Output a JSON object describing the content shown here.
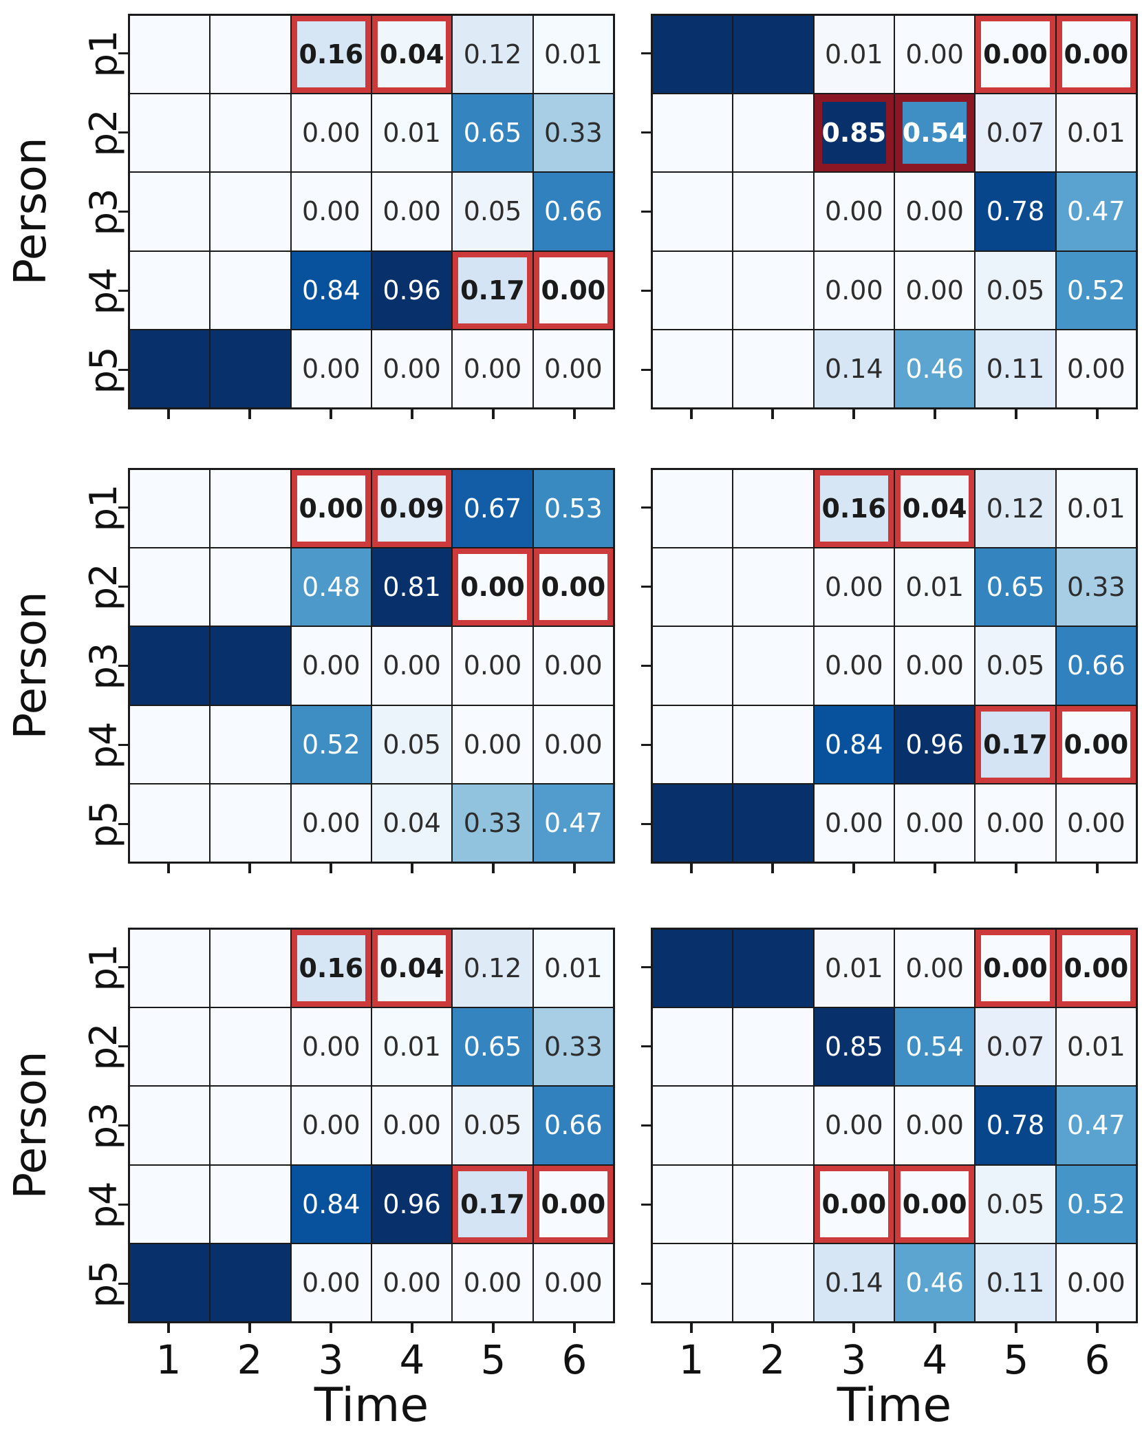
{
  "figure": {
    "ylabel": "Person",
    "xlabel": "Time",
    "x_ticklabels": [
      "1",
      "2",
      "3",
      "4",
      "5",
      "6"
    ],
    "y_ticklabels": [
      "p1",
      "p2",
      "p3",
      "p4",
      "p5"
    ]
  },
  "chart_data": {
    "type": "heatmap",
    "layout": "3 rows x 2 columns of subplots",
    "colormap": "Blues",
    "colormap_stops": [
      [
        0.0,
        "#f7fbff"
      ],
      [
        0.125,
        "#deebf7"
      ],
      [
        0.25,
        "#c6dbef"
      ],
      [
        0.375,
        "#9ecae1"
      ],
      [
        0.5,
        "#6baed6"
      ],
      [
        0.625,
        "#4292c6"
      ],
      [
        0.75,
        "#2171b5"
      ],
      [
        0.875,
        "#08519c"
      ],
      [
        1.0,
        "#08306b"
      ]
    ],
    "normalization": "per_subplot_vmax",
    "value_format": "2dp",
    "highlight_colors": {
      "red": "#cd3a3c",
      "darkred": "#8b1724"
    },
    "grid_line_color": "#1a1a1a",
    "xlabel": "Time",
    "ylabel": "Person",
    "x": [
      "1",
      "2",
      "3",
      "4",
      "5",
      "6"
    ],
    "y": [
      "p1",
      "p2",
      "p3",
      "p4",
      "p5"
    ],
    "cell_legend": "null = empty min-color cell (no text); \"max\" = solid darkest-blue cell (no text); number = annotated value; object {v, hl} = annotated value with red/darkred highlight box and bold text",
    "subplots": [
      {
        "position": "top-left",
        "vmax": 0.96,
        "show_yticklabels": true,
        "show_xticklabels": false,
        "show_xlabel": false,
        "cells": [
          [
            null,
            null,
            {
              "v": 0.16,
              "hl": "red"
            },
            {
              "v": 0.04,
              "hl": "red"
            },
            0.12,
            0.01
          ],
          [
            null,
            null,
            0.0,
            0.01,
            0.65,
            0.33
          ],
          [
            null,
            null,
            0.0,
            0.0,
            0.05,
            0.66
          ],
          [
            null,
            null,
            0.84,
            0.96,
            {
              "v": 0.17,
              "hl": "red"
            },
            {
              "v": 0.0,
              "hl": "red"
            }
          ],
          [
            "max",
            "max",
            0.0,
            0.0,
            0.0,
            0.0
          ]
        ]
      },
      {
        "position": "top-right",
        "vmax": 0.85,
        "show_yticklabels": false,
        "show_xticklabels": false,
        "show_xlabel": false,
        "cells": [
          [
            "max",
            "max",
            0.01,
            0.0,
            {
              "v": 0.0,
              "hl": "red"
            },
            {
              "v": 0.0,
              "hl": "red"
            }
          ],
          [
            null,
            null,
            {
              "v": 0.85,
              "hl": "darkred"
            },
            {
              "v": 0.54,
              "hl": "darkred"
            },
            0.07,
            0.01
          ],
          [
            null,
            null,
            0.0,
            0.0,
            0.78,
            0.47
          ],
          [
            null,
            null,
            0.0,
            0.0,
            0.05,
            0.52
          ],
          [
            null,
            null,
            0.14,
            0.46,
            0.11,
            0.0
          ]
        ]
      },
      {
        "position": "middle-left",
        "vmax": 0.81,
        "show_yticklabels": true,
        "show_xticklabels": false,
        "show_xlabel": false,
        "cells": [
          [
            null,
            null,
            {
              "v": 0.0,
              "hl": "red"
            },
            {
              "v": 0.09,
              "hl": "red"
            },
            0.67,
            0.53
          ],
          [
            null,
            null,
            0.48,
            0.81,
            {
              "v": 0.0,
              "hl": "red"
            },
            {
              "v": 0.0,
              "hl": "red"
            }
          ],
          [
            "max",
            "max",
            0.0,
            0.0,
            0.0,
            0.0
          ],
          [
            null,
            null,
            0.52,
            0.05,
            0.0,
            0.0
          ],
          [
            null,
            null,
            0.0,
            0.04,
            0.33,
            0.47
          ]
        ]
      },
      {
        "position": "middle-right",
        "vmax": 0.96,
        "show_yticklabels": false,
        "show_xticklabels": false,
        "show_xlabel": false,
        "cells": [
          [
            null,
            null,
            {
              "v": 0.16,
              "hl": "red"
            },
            {
              "v": 0.04,
              "hl": "red"
            },
            0.12,
            0.01
          ],
          [
            null,
            null,
            0.0,
            0.01,
            0.65,
            0.33
          ],
          [
            null,
            null,
            0.0,
            0.0,
            0.05,
            0.66
          ],
          [
            null,
            null,
            0.84,
            0.96,
            {
              "v": 0.17,
              "hl": "red"
            },
            {
              "v": 0.0,
              "hl": "red"
            }
          ],
          [
            "max",
            "max",
            0.0,
            0.0,
            0.0,
            0.0
          ]
        ]
      },
      {
        "position": "bottom-left",
        "vmax": 0.96,
        "show_yticklabels": true,
        "show_xticklabels": true,
        "show_xlabel": true,
        "cells": [
          [
            null,
            null,
            {
              "v": 0.16,
              "hl": "red"
            },
            {
              "v": 0.04,
              "hl": "red"
            },
            0.12,
            0.01
          ],
          [
            null,
            null,
            0.0,
            0.01,
            0.65,
            0.33
          ],
          [
            null,
            null,
            0.0,
            0.0,
            0.05,
            0.66
          ],
          [
            null,
            null,
            0.84,
            0.96,
            {
              "v": 0.17,
              "hl": "red"
            },
            {
              "v": 0.0,
              "hl": "red"
            }
          ],
          [
            "max",
            "max",
            0.0,
            0.0,
            0.0,
            0.0
          ]
        ]
      },
      {
        "position": "bottom-right",
        "vmax": 0.85,
        "show_yticklabels": false,
        "show_xticklabels": true,
        "show_xlabel": true,
        "cells": [
          [
            "max",
            "max",
            0.01,
            0.0,
            {
              "v": 0.0,
              "hl": "red"
            },
            {
              "v": 0.0,
              "hl": "red"
            }
          ],
          [
            null,
            null,
            0.85,
            0.54,
            0.07,
            0.01
          ],
          [
            null,
            null,
            0.0,
            0.0,
            0.78,
            0.47
          ],
          [
            null,
            null,
            {
              "v": 0.0,
              "hl": "red"
            },
            {
              "v": 0.0,
              "hl": "red"
            },
            0.05,
            0.52
          ],
          [
            null,
            null,
            0.14,
            0.46,
            0.11,
            0.0
          ]
        ]
      }
    ]
  }
}
